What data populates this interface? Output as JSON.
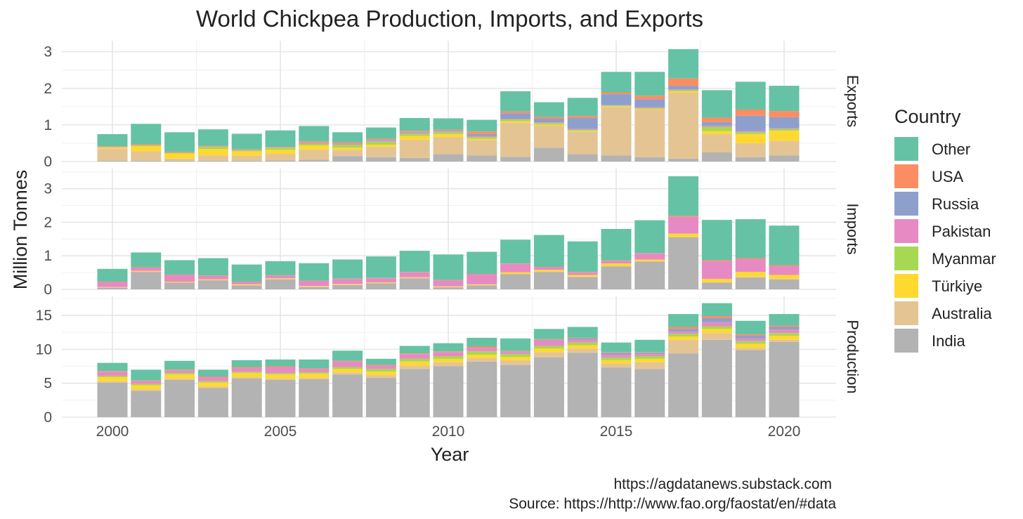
{
  "chart_data": {
    "type": "bar",
    "stacked": true,
    "title": "World Chickpea Production, Imports, and Exports",
    "xlabel": "Year",
    "ylabel": "Million Tonnes",
    "grid": true,
    "legend_placement": "right",
    "legend_title": "Country",
    "countries": [
      "India",
      "Australia",
      "Türkiye",
      "Myanmar",
      "Pakistan",
      "Russia",
      "USA",
      "Other"
    ],
    "legend_order": [
      "Other",
      "USA",
      "Russia",
      "Pakistan",
      "Myanmar",
      "Türkiye",
      "Australia",
      "India"
    ],
    "colors": {
      "India": "#b3b3b3",
      "Australia": "#e5c494",
      "Türkiye": "#ffd92f",
      "Myanmar": "#a6d854",
      "Pakistan": "#e78ac3",
      "Russia": "#8da0cb",
      "USA": "#fc8d62",
      "Other": "#66c2a5"
    },
    "years": [
      2000,
      2001,
      2002,
      2003,
      2004,
      2005,
      2006,
      2007,
      2008,
      2009,
      2010,
      2011,
      2012,
      2013,
      2014,
      2015,
      2016,
      2017,
      2018,
      2019,
      2020
    ],
    "x_ticks": [
      2000,
      2005,
      2010,
      2015,
      2020
    ],
    "panels": [
      {
        "label": "Exports",
        "ylim": [
          0,
          3.3
        ],
        "yticks": [
          0,
          1,
          2,
          3
        ],
        "series": {
          "India": [
            0.02,
            0.02,
            0.02,
            0.02,
            0.02,
            0.03,
            0.05,
            0.15,
            0.12,
            0.1,
            0.2,
            0.17,
            0.13,
            0.38,
            0.2,
            0.17,
            0.12,
            0.08,
            0.25,
            0.12,
            0.17
          ],
          "Australia": [
            0.33,
            0.26,
            0.06,
            0.15,
            0.14,
            0.18,
            0.28,
            0.17,
            0.28,
            0.5,
            0.47,
            0.42,
            0.93,
            0.6,
            0.62,
            1.32,
            1.3,
            1.8,
            0.5,
            0.38,
            0.4
          ],
          "Türkiye": [
            0.03,
            0.14,
            0.14,
            0.17,
            0.12,
            0.11,
            0.11,
            0.06,
            0.06,
            0.1,
            0.08,
            0.03,
            0.04,
            0.03,
            0.02,
            0.02,
            0.02,
            0.04,
            0.08,
            0.25,
            0.27
          ],
          "Myanmar": [
            0.01,
            0.03,
            0.02,
            0.06,
            0.02,
            0.05,
            0.05,
            0.08,
            0.08,
            0.06,
            0.05,
            0.05,
            0.05,
            0.04,
            0.03,
            0.02,
            0.02,
            0.03,
            0.12,
            0.05,
            0.05
          ],
          "Pakistan": [
            0.01,
            0.01,
            0.01,
            0.01,
            0.01,
            0.01,
            0.03,
            0.03,
            0.03,
            0.03,
            0.02,
            0.03,
            0.02,
            0.02,
            0.02,
            0.01,
            0.02,
            0.02,
            0.03,
            0.03,
            0.02
          ],
          "Russia": [
            0.0,
            0.0,
            0.0,
            0.0,
            0.0,
            0.0,
            0.0,
            0.0,
            0.02,
            0.02,
            0.02,
            0.05,
            0.15,
            0.1,
            0.3,
            0.3,
            0.22,
            0.1,
            0.1,
            0.42,
            0.3
          ],
          "USA": [
            0.02,
            0.02,
            0.02,
            0.02,
            0.02,
            0.02,
            0.03,
            0.03,
            0.03,
            0.03,
            0.03,
            0.07,
            0.05,
            0.05,
            0.05,
            0.05,
            0.1,
            0.2,
            0.12,
            0.17,
            0.17
          ],
          "Other": [
            0.33,
            0.55,
            0.53,
            0.45,
            0.43,
            0.45,
            0.42,
            0.28,
            0.31,
            0.35,
            0.31,
            0.32,
            0.55,
            0.4,
            0.5,
            0.56,
            0.65,
            0.8,
            0.75,
            0.76,
            0.69
          ]
        }
      },
      {
        "label": "Imports",
        "ylim": [
          0,
          3.6
        ],
        "yticks": [
          0,
          1,
          2,
          3
        ],
        "series": {
          "India": [
            0.05,
            0.52,
            0.2,
            0.27,
            0.12,
            0.3,
            0.07,
            0.13,
            0.18,
            0.33,
            0.06,
            0.12,
            0.45,
            0.52,
            0.37,
            0.68,
            0.83,
            1.55,
            0.2,
            0.36,
            0.3
          ],
          "Australia": [
            0.01,
            0.01,
            0.01,
            0.01,
            0.01,
            0.01,
            0.01,
            0.01,
            0.01,
            0.01,
            0.01,
            0.01,
            0.01,
            0.01,
            0.01,
            0.01,
            0.01,
            0.01,
            0.01,
            0.01,
            0.01
          ],
          "Türkiye": [
            0.01,
            0.02,
            0.02,
            0.02,
            0.02,
            0.02,
            0.02,
            0.02,
            0.02,
            0.02,
            0.02,
            0.02,
            0.05,
            0.05,
            0.05,
            0.08,
            0.05,
            0.1,
            0.1,
            0.15,
            0.12
          ],
          "Myanmar": [
            0.0,
            0.0,
            0.0,
            0.0,
            0.0,
            0.0,
            0.0,
            0.0,
            0.0,
            0.0,
            0.0,
            0.0,
            0.0,
            0.0,
            0.0,
            0.0,
            0.0,
            0.0,
            0.0,
            0.0,
            0.0
          ],
          "Pakistan": [
            0.15,
            0.1,
            0.2,
            0.1,
            0.07,
            0.08,
            0.15,
            0.15,
            0.12,
            0.15,
            0.18,
            0.3,
            0.25,
            0.08,
            0.08,
            0.08,
            0.18,
            0.5,
            0.53,
            0.38,
            0.26
          ],
          "Russia": [
            0.0,
            0.0,
            0.0,
            0.0,
            0.0,
            0.0,
            0.0,
            0.0,
            0.0,
            0.0,
            0.0,
            0.0,
            0.0,
            0.0,
            0.0,
            0.0,
            0.0,
            0.0,
            0.0,
            0.0,
            0.0
          ],
          "USA": [
            0.01,
            0.01,
            0.01,
            0.01,
            0.01,
            0.01,
            0.01,
            0.01,
            0.01,
            0.01,
            0.01,
            0.01,
            0.01,
            0.01,
            0.01,
            0.01,
            0.01,
            0.03,
            0.03,
            0.03,
            0.03
          ],
          "Other": [
            0.38,
            0.44,
            0.43,
            0.52,
            0.51,
            0.42,
            0.52,
            0.57,
            0.64,
            0.63,
            0.76,
            0.66,
            0.71,
            0.95,
            0.91,
            0.94,
            0.98,
            1.18,
            1.2,
            1.16,
            1.18
          ]
        }
      },
      {
        "label": "Production",
        "ylim": [
          0,
          17.8
        ],
        "yticks": [
          0,
          5,
          10,
          15
        ],
        "series": {
          "India": [
            5.1,
            3.9,
            5.5,
            4.3,
            5.7,
            5.5,
            5.6,
            6.3,
            5.8,
            7.1,
            7.5,
            8.2,
            7.7,
            8.8,
            9.5,
            7.3,
            7.1,
            9.4,
            11.4,
            9.9,
            11.1
          ],
          "Australia": [
            0.2,
            0.2,
            0.2,
            0.2,
            0.2,
            0.2,
            0.2,
            0.3,
            0.4,
            0.5,
            0.6,
            0.5,
            0.7,
            0.8,
            0.6,
            0.6,
            1.0,
            2.0,
            1.0,
            0.3,
            0.3
          ],
          "Türkiye": [
            0.6,
            0.6,
            0.6,
            0.6,
            0.6,
            0.6,
            0.6,
            0.5,
            0.5,
            0.6,
            0.5,
            0.5,
            0.5,
            0.5,
            0.5,
            0.5,
            0.5,
            0.5,
            0.6,
            0.6,
            0.6
          ],
          "Myanmar": [
            0.2,
            0.2,
            0.2,
            0.2,
            0.2,
            0.2,
            0.2,
            0.3,
            0.4,
            0.4,
            0.4,
            0.5,
            0.4,
            0.4,
            0.4,
            0.4,
            0.4,
            0.4,
            0.4,
            0.4,
            0.4
          ],
          "Pakistan": [
            0.6,
            0.4,
            0.4,
            0.6,
            0.6,
            0.9,
            0.5,
            0.8,
            0.5,
            0.7,
            0.6,
            0.5,
            0.3,
            0.8,
            0.4,
            0.4,
            0.3,
            0.3,
            0.6,
            0.4,
            0.5
          ],
          "Russia": [
            0.0,
            0.0,
            0.0,
            0.0,
            0.0,
            0.0,
            0.0,
            0.0,
            0.0,
            0.0,
            0.0,
            0.0,
            0.1,
            0.1,
            0.2,
            0.3,
            0.2,
            0.4,
            0.6,
            0.4,
            0.4
          ],
          "USA": [
            0.1,
            0.1,
            0.1,
            0.1,
            0.1,
            0.1,
            0.1,
            0.1,
            0.1,
            0.1,
            0.1,
            0.2,
            0.1,
            0.1,
            0.1,
            0.1,
            0.1,
            0.3,
            0.3,
            0.2,
            0.2
          ],
          "Other": [
            1.2,
            1.6,
            1.3,
            1.0,
            1.0,
            1.0,
            1.3,
            1.5,
            0.9,
            1.1,
            1.2,
            1.3,
            1.8,
            1.5,
            1.6,
            1.4,
            1.8,
            1.9,
            1.9,
            2.0,
            1.7
          ]
        }
      }
    ],
    "footer_lines": [
      "https://agdatanews.substack.com",
      "Source: https://http://www.fao.org/faostat/en/#data"
    ]
  }
}
